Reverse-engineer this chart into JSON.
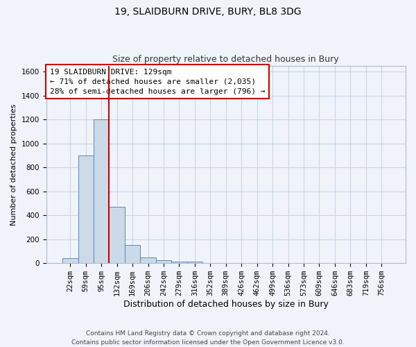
{
  "title": "19, SLAIDBURN DRIVE, BURY, BL8 3DG",
  "subtitle": "Size of property relative to detached houses in Bury",
  "xlabel": "Distribution of detached houses by size in Bury",
  "ylabel": "Number of detached properties",
  "bar_color": "#ccd9e8",
  "bar_edge_color": "#5588bb",
  "vline_color": "#cc0000",
  "vline_x_index": 2.5,
  "categories": [
    "22sqm",
    "59sqm",
    "95sqm",
    "132sqm",
    "169sqm",
    "206sqm",
    "242sqm",
    "279sqm",
    "316sqm",
    "352sqm",
    "389sqm",
    "426sqm",
    "462sqm",
    "499sqm",
    "536sqm",
    "573sqm",
    "609sqm",
    "646sqm",
    "683sqm",
    "719sqm",
    "756sqm"
  ],
  "values": [
    40,
    900,
    1200,
    470,
    150,
    50,
    25,
    15,
    15,
    0,
    0,
    0,
    0,
    0,
    0,
    0,
    0,
    0,
    0,
    0,
    0
  ],
  "ylim": [
    0,
    1650
  ],
  "yticks": [
    0,
    200,
    400,
    600,
    800,
    1000,
    1200,
    1400,
    1600
  ],
  "grid_color": "#c8d4e4",
  "annotation_text": "19 SLAIDBURN DRIVE: 129sqm\n← 71% of detached houses are smaller (2,035)\n28% of semi-detached houses are larger (796) →",
  "annotation_box_color": "#ffffff",
  "annotation_box_edge": "#cc0000",
  "footer_line1": "Contains HM Land Registry data © Crown copyright and database right 2024.",
  "footer_line2": "Contains public sector information licensed under the Open Government Licence v3.0.",
  "background_color": "#f0f4fa",
  "title_fontsize": 10,
  "subtitle_fontsize": 9,
  "xlabel_fontsize": 9,
  "ylabel_fontsize": 8,
  "tick_fontsize": 7.5,
  "annotation_fontsize": 8
}
